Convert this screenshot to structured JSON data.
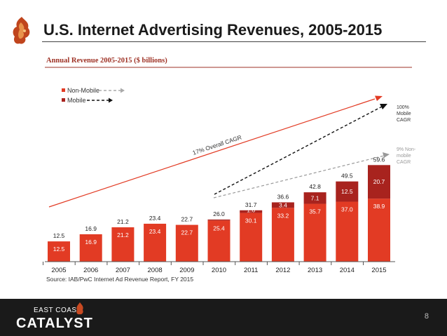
{
  "slide": {
    "title": "U.S. Internet Advertising Revenues, 2005-2015",
    "page_number": "8"
  },
  "brand": {
    "top_text": "EAST COAST",
    "main_text": "CATALYST"
  },
  "colors": {
    "accent_red": "#e23b24",
    "dark_red": "#a8231e",
    "header_text": "#9e3124",
    "annotation_gray": "#999999"
  },
  "chart_data": {
    "type": "bar",
    "title": "Annual Revenue 2005-2015 ($ billions)",
    "source": "Source: IAB/PwC Internet Ad Revenue Report, FY 2015",
    "categories": [
      "2005",
      "2006",
      "2007",
      "2008",
      "2009",
      "2010",
      "2011",
      "2012",
      "2013",
      "2014",
      "2015"
    ],
    "series": [
      {
        "name": "Non-Mobile",
        "values": [
          12.5,
          16.9,
          21.2,
          23.4,
          22.7,
          25.4,
          30.1,
          33.2,
          35.7,
          37.0,
          38.9
        ]
      },
      {
        "name": "Mobile",
        "values": [
          0,
          0,
          0,
          0,
          0,
          0.6,
          1.6,
          3.4,
          7.1,
          12.5,
          20.7
        ]
      }
    ],
    "totals": [
      12.5,
      16.9,
      21.2,
      23.4,
      22.7,
      26.0,
      31.7,
      36.6,
      42.8,
      49.5,
      59.6
    ],
    "non_mobile_labels": [
      "12.5",
      "16.9",
      "21.2",
      "23.4",
      "22.7",
      "25.4",
      "30.1",
      "33.2",
      "35.7",
      "37.0",
      "38.9"
    ],
    "mobile_labels": [
      "",
      "",
      "",
      "",
      "",
      "",
      "1.6",
      "3.4",
      "7.1",
      "12.5",
      "20.7"
    ],
    "total_labels": [
      "12.5",
      "16.9",
      "21.2",
      "23.4",
      "22.7",
      "26.0",
      "31.7",
      "36.6",
      "42.8",
      "49.5",
      "59.6"
    ],
    "legend": [
      {
        "label": "Non-Mobile",
        "line_style": "gray-dashed"
      },
      {
        "label": "Mobile",
        "line_style": "black-dashed"
      }
    ],
    "annotations": {
      "overall_cagr": "17% Overall CAGR",
      "mobile_cagr": [
        "100%",
        "Mobile",
        "CAGR"
      ],
      "nonmobile_cagr": [
        "9% Non-",
        "mobile",
        "CAGR"
      ]
    },
    "ylim": [
      0,
      70
    ]
  }
}
